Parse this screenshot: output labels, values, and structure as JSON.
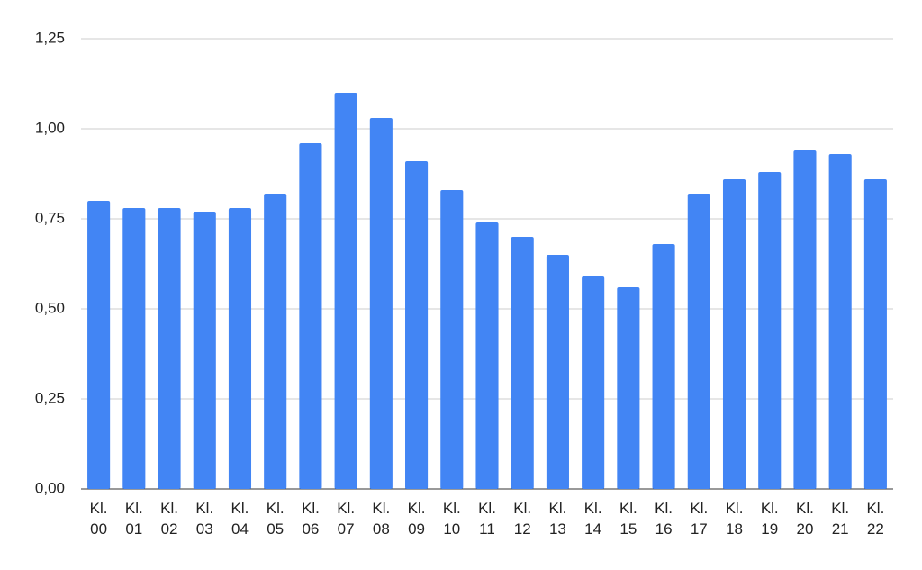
{
  "chart_data": {
    "type": "bar",
    "categories": [
      "Kl. 00",
      "Kl. 01",
      "Kl. 02",
      "Kl. 03",
      "Kl. 04",
      "Kl. 05",
      "Kl. 06",
      "Kl. 07",
      "Kl. 08",
      "Kl. 09",
      "Kl. 10",
      "Kl. 11",
      "Kl. 12",
      "Kl. 13",
      "Kl. 14",
      "Kl. 15",
      "Kl. 16",
      "Kl. 17",
      "Kl. 18",
      "Kl. 19",
      "Kl. 20",
      "Kl. 21",
      "Kl. 22"
    ],
    "values": [
      0.8,
      0.78,
      0.78,
      0.77,
      0.78,
      0.82,
      0.96,
      1.1,
      1.03,
      0.91,
      0.83,
      0.74,
      0.7,
      0.65,
      0.59,
      0.56,
      0.68,
      0.82,
      0.86,
      0.88,
      0.94,
      0.93,
      0.86
    ],
    "color": "#4285f4",
    "ylim": [
      0,
      1.25
    ],
    "yticks": [
      {
        "value": 0,
        "label": "0,00"
      },
      {
        "value": 0.25,
        "label": "0,25"
      },
      {
        "value": 0.5,
        "label": "0,50"
      },
      {
        "value": 0.75,
        "label": "0,75"
      },
      {
        "value": 1,
        "label": "1,00"
      },
      {
        "value": 1.25,
        "label": "1,25"
      }
    ],
    "grid": true
  }
}
